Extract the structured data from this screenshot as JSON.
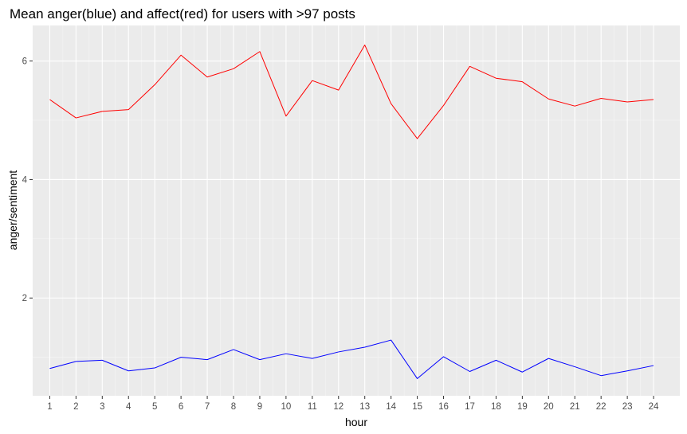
{
  "chart_data": {
    "type": "line",
    "title": "Mean anger(blue) and affect(red) for users with >97 posts",
    "xlabel": "hour",
    "ylabel": "anger/sentiment",
    "x": [
      1,
      2,
      3,
      4,
      5,
      6,
      7,
      8,
      9,
      10,
      11,
      12,
      13,
      14,
      15,
      16,
      17,
      18,
      19,
      20,
      21,
      22,
      23,
      24
    ],
    "xlim": [
      0.35,
      25.0
    ],
    "ylim": [
      0.35,
      6.6
    ],
    "yticks": [
      2,
      4,
      6
    ],
    "grid": true,
    "legend": "none",
    "background": "#ebebeb",
    "series": [
      {
        "color": "#ff0000",
        "values": [
          5.35,
          5.04,
          5.15,
          5.18,
          5.6,
          6.1,
          5.73,
          5.87,
          6.16,
          5.07,
          5.67,
          5.51,
          6.27,
          5.28,
          4.69,
          5.25,
          5.91,
          5.71,
          5.65,
          5.36,
          5.24,
          5.37,
          5.31,
          5.35
        ]
      },
      {
        "color": "#0000ff",
        "values": [
          0.81,
          0.93,
          0.95,
          0.77,
          0.82,
          1.0,
          0.96,
          1.13,
          0.96,
          1.06,
          0.98,
          1.09,
          1.17,
          1.29,
          0.64,
          1.01,
          0.76,
          0.95,
          0.75,
          0.98,
          0.84,
          0.69,
          0.77,
          0.86
        ]
      }
    ]
  }
}
